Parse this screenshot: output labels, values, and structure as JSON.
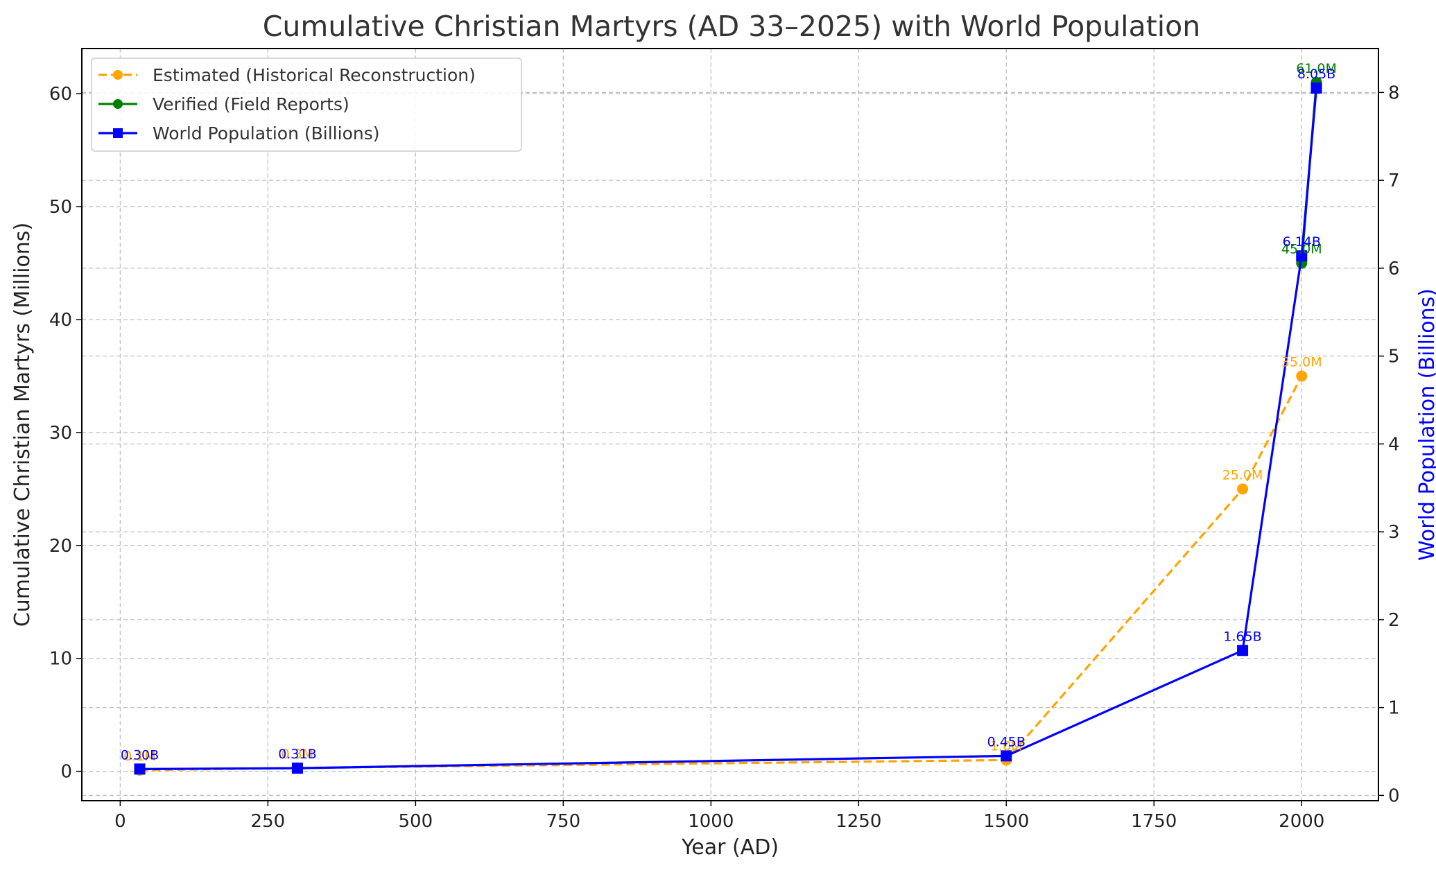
{
  "chart_data": {
    "type": "line",
    "title": "Cumulative Christian Martyrs (AD 33–2025) with World Population",
    "xlabel": "Year (AD)",
    "ylabel": "Cumulative Christian Martyrs (Millions)",
    "y2label": "World Population (Billions)",
    "xlim": [
      -65,
      2130
    ],
    "ylim": [
      -2.6,
      64
    ],
    "y2lim": [
      -0.06,
      8.5
    ],
    "x_ticks": [
      0,
      250,
      500,
      750,
      1000,
      1250,
      1500,
      1750,
      2000
    ],
    "y_ticks": [
      0,
      10,
      20,
      30,
      40,
      50,
      60
    ],
    "y2_ticks": [
      0,
      1,
      2,
      3,
      4,
      5,
      6,
      7,
      8
    ],
    "grid": true,
    "legend_position": "top-left",
    "series": [
      {
        "name": "Estimated (Historical Reconstruction)",
        "axis": "left",
        "color": "#FFA500",
        "line_style": "dashed",
        "marker": "circle",
        "points": [
          {
            "x": 33,
            "y": 0.1,
            "label": "0.1M"
          },
          {
            "x": 300,
            "y": 0.3,
            "label": "0.3M"
          },
          {
            "x": 1500,
            "y": 1.0,
            "label": "1.0M"
          },
          {
            "x": 1900,
            "y": 25.0,
            "label": "25.0M"
          },
          {
            "x": 2000,
            "y": 35.0,
            "label": "35.0M"
          }
        ]
      },
      {
        "name": "Verified (Field Reports)",
        "axis": "left",
        "color": "#008000",
        "line_style": "solid",
        "marker": "circle",
        "points": [
          {
            "x": 2000,
            "y": 45.0,
            "label": "45.0M"
          },
          {
            "x": 2025,
            "y": 61.0,
            "label": "61.0M"
          }
        ]
      },
      {
        "name": "World Population (Billions)",
        "axis": "right",
        "color": "#0000FF",
        "line_style": "solid",
        "marker": "square",
        "points": [
          {
            "x": 33,
            "y": 0.3,
            "label": "0.30B"
          },
          {
            "x": 300,
            "y": 0.31,
            "label": "0.31B"
          },
          {
            "x": 1500,
            "y": 0.45,
            "label": "0.45B"
          },
          {
            "x": 1900,
            "y": 1.65,
            "label": "1.65B"
          },
          {
            "x": 2000,
            "y": 6.14,
            "label": "6.14B"
          },
          {
            "x": 2025,
            "y": 8.05,
            "label": "8.05B"
          }
        ]
      }
    ]
  }
}
